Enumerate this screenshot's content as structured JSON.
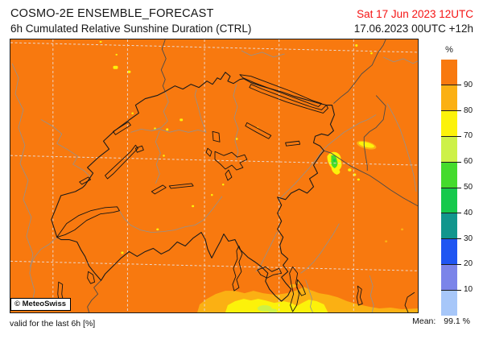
{
  "header": {
    "title": "COSMO-2E ENSEMBLE_FORECAST",
    "subtitle": "6h Cumulated Relative Sunshine Duration (CTRL)",
    "valid_datetime": "Sat 17 Jun 2023 12UTC",
    "init_datetime": "17.06.2023 00UTC +12h"
  },
  "map": {
    "copyright": "© MeteoSwiss",
    "colors": {
      "background": "#f8790f",
      "national_border": "#1a1a1a",
      "foreign_border": "#4a4a4a",
      "river": "#8f9294",
      "graticule": "#ead7cd"
    }
  },
  "legend": {
    "unit": "%",
    "tick_labels": [
      "90",
      "80",
      "70",
      "60",
      "50",
      "40",
      "30",
      "20",
      "10"
    ],
    "segment_colors": [
      "#f8790f",
      "#fbb013",
      "#fcf20a",
      "#cdf148",
      "#44db2d",
      "#16c94c",
      "#11968d",
      "#1f55f2",
      "#7b84e9",
      "#a7c7f9"
    ]
  },
  "footer": {
    "validity_note": "valid for the last 6h [%]",
    "mean_label": "Mean:",
    "mean_value": "99.1 %"
  }
}
